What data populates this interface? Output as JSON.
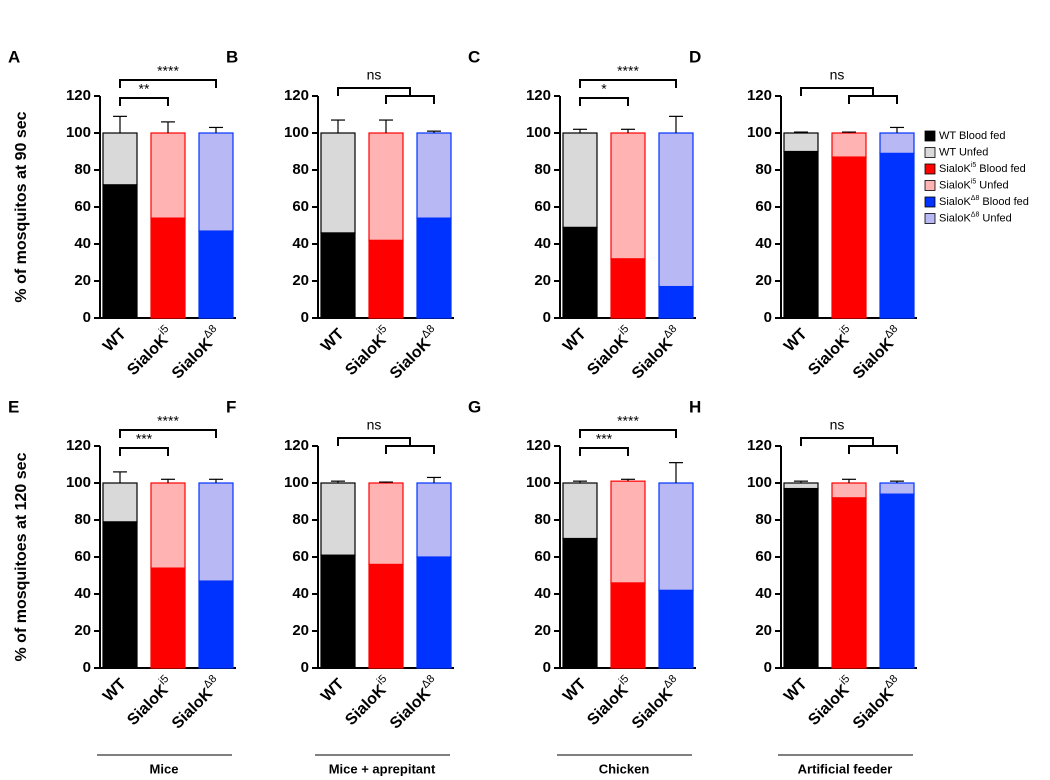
{
  "chart_data": [
    {
      "type": "bar",
      "label": "A",
      "ylabel": "% of mosquitos at 90 sec",
      "categories": [
        "WT",
        "SialoK",
        "SialoK"
      ],
      "category_sup": [
        null,
        "i5",
        "Δ8"
      ],
      "series": [
        {
          "colors": [
            "#000000",
            "#ff0000",
            "#0033ff"
          ],
          "values": [
            72,
            54,
            47
          ],
          "errors": [
            10,
            6,
            4
          ]
        },
        {
          "colors": [
            "#d9d9d9",
            "#ffb3b3",
            "#b8b8f5"
          ],
          "values": [
            28,
            46,
            53
          ],
          "errors": [
            9,
            6,
            3
          ]
        }
      ],
      "ylim": [
        0,
        120
      ],
      "yticks": [
        0,
        20,
        40,
        60,
        80,
        100,
        120
      ],
      "brackets": [
        {
          "kind": "wt-i5",
          "label": "**"
        },
        {
          "kind": "wt-d8",
          "label": "****"
        }
      ]
    },
    {
      "type": "bar",
      "label": "B",
      "categories": [
        "WT",
        "SialoK",
        "SialoK"
      ],
      "category_sup": [
        null,
        "i5",
        "Δ8"
      ],
      "series": [
        {
          "colors": [
            "#000000",
            "#ff0000",
            "#0033ff"
          ],
          "values": [
            46,
            42,
            54
          ],
          "errors": [
            8,
            8,
            1
          ]
        },
        {
          "colors": [
            "#d9d9d9",
            "#ffb3b3",
            "#b8b8f5"
          ],
          "values": [
            54,
            58,
            46
          ],
          "errors": [
            7,
            7,
            1
          ]
        }
      ],
      "ylim": [
        0,
        120
      ],
      "yticks": [
        0,
        20,
        40,
        60,
        80,
        100,
        120
      ],
      "brackets": [
        {
          "kind": "wt-group",
          "label": "ns"
        }
      ]
    },
    {
      "type": "bar",
      "label": "C",
      "categories": [
        "WT",
        "SialoK",
        "SialoK"
      ],
      "category_sup": [
        null,
        "i5",
        "Δ8"
      ],
      "series": [
        {
          "colors": [
            "#000000",
            "#ff0000",
            "#0033ff"
          ],
          "values": [
            49,
            32,
            17
          ],
          "errors": [
            2,
            2,
            10
          ]
        },
        {
          "colors": [
            "#d9d9d9",
            "#ffb3b3",
            "#b8b8f5"
          ],
          "values": [
            51,
            68,
            83
          ],
          "errors": [
            2,
            2,
            9
          ]
        }
      ],
      "ylim": [
        0,
        120
      ],
      "yticks": [
        0,
        20,
        40,
        60,
        80,
        100,
        120
      ],
      "brackets": [
        {
          "kind": "wt-i5",
          "label": "*"
        },
        {
          "kind": "wt-d8",
          "label": "****"
        }
      ]
    },
    {
      "type": "bar",
      "label": "D",
      "categories": [
        "WT",
        "SialoK",
        "SialoK"
      ],
      "category_sup": [
        null,
        "i5",
        "Δ8"
      ],
      "series": [
        {
          "colors": [
            "#000000",
            "#ff0000",
            "#0033ff"
          ],
          "values": [
            90,
            87,
            89
          ],
          "errors": [
            1,
            1,
            3
          ]
        },
        {
          "colors": [
            "#d9d9d9",
            "#ffb3b3",
            "#b8b8f5"
          ],
          "values": [
            10,
            13,
            11
          ],
          "errors": [
            0.5,
            0.5,
            3
          ]
        }
      ],
      "ylim": [
        0,
        120
      ],
      "yticks": [
        0,
        20,
        40,
        60,
        80,
        100,
        120
      ],
      "brackets": [
        {
          "kind": "wt-group",
          "label": "ns"
        }
      ],
      "legend": [
        {
          "name": "WT Blood fed",
          "color": "#000000"
        },
        {
          "name": "WT Unfed",
          "color": "#d9d9d9"
        },
        {
          "name": "SialoK",
          "sup": "i5",
          "suffix": " Blood fed",
          "color": "#ff0000"
        },
        {
          "name": "SialoK",
          "sup": "i5",
          "suffix": " Unfed",
          "color": "#ffb3b3"
        },
        {
          "name": "SialoK",
          "sup": "Δ8",
          "suffix": " Blood fed",
          "color": "#0033ff"
        },
        {
          "name": "SialoK",
          "sup": "Δ8",
          "suffix": " Unfed",
          "color": "#b8b8f5"
        }
      ]
    },
    {
      "type": "bar",
      "label": "E",
      "ylabel": "% of mosquitoes at 120 sec",
      "group_label": "Mice",
      "categories": [
        "WT",
        "SialoK",
        "SialoK"
      ],
      "category_sup": [
        null,
        "i5",
        "Δ8"
      ],
      "series": [
        {
          "colors": [
            "#000000",
            "#ff0000",
            "#0033ff"
          ],
          "values": [
            79,
            54,
            47
          ],
          "errors": [
            6,
            2,
            2
          ]
        },
        {
          "colors": [
            "#d9d9d9",
            "#ffb3b3",
            "#b8b8f5"
          ],
          "values": [
            21,
            46,
            53
          ],
          "errors": [
            6,
            2,
            2
          ]
        }
      ],
      "ylim": [
        0,
        120
      ],
      "yticks": [
        0,
        20,
        40,
        60,
        80,
        100,
        120
      ],
      "brackets": [
        {
          "kind": "wt-i5",
          "label": "***"
        },
        {
          "kind": "wt-d8",
          "label": "****"
        }
      ]
    },
    {
      "type": "bar",
      "label": "F",
      "group_label": "Mice + aprepitant",
      "categories": [
        "WT",
        "SialoK",
        "SialoK"
      ],
      "category_sup": [
        null,
        "i5",
        "Δ8"
      ],
      "series": [
        {
          "colors": [
            "#000000",
            "#ff0000",
            "#0033ff"
          ],
          "values": [
            61,
            56,
            60
          ],
          "errors": [
            1,
            1,
            4
          ]
        },
        {
          "colors": [
            "#d9d9d9",
            "#ffb3b3",
            "#b8b8f5"
          ],
          "values": [
            39,
            44,
            40
          ],
          "errors": [
            1,
            0.5,
            3
          ]
        }
      ],
      "ylim": [
        0,
        120
      ],
      "yticks": [
        0,
        20,
        40,
        60,
        80,
        100,
        120
      ],
      "brackets": [
        {
          "kind": "wt-group",
          "label": "ns"
        }
      ]
    },
    {
      "type": "bar",
      "label": "G",
      "group_label": "Chicken",
      "categories": [
        "WT",
        "SialoK",
        "SialoK"
      ],
      "category_sup": [
        null,
        "i5",
        "Δ8"
      ],
      "series": [
        {
          "colors": [
            "#000000",
            "#ff0000",
            "#0033ff"
          ],
          "values": [
            70,
            46,
            42
          ],
          "errors": [
            1,
            3,
            12
          ]
        },
        {
          "colors": [
            "#d9d9d9",
            "#ffb3b3",
            "#b8b8f5"
          ],
          "values": [
            30,
            55,
            58
          ],
          "errors": [
            1,
            1,
            11
          ]
        }
      ],
      "ylim": [
        0,
        120
      ],
      "yticks": [
        0,
        20,
        40,
        60,
        80,
        100,
        120
      ],
      "brackets": [
        {
          "kind": "wt-i5",
          "label": "***"
        },
        {
          "kind": "wt-d8",
          "label": "****"
        }
      ]
    },
    {
      "type": "bar",
      "label": "H",
      "group_label": "Artificial feeder",
      "categories": [
        "WT",
        "SialoK",
        "SialoK"
      ],
      "category_sup": [
        null,
        "i5",
        "Δ8"
      ],
      "series": [
        {
          "colors": [
            "#000000",
            "#ff0000",
            "#0033ff"
          ],
          "values": [
            97,
            92,
            94
          ],
          "errors": [
            2,
            2,
            1
          ]
        },
        {
          "colors": [
            "#d9d9d9",
            "#ffb3b3",
            "#b8b8f5"
          ],
          "values": [
            3,
            8,
            6
          ],
          "errors": [
            1,
            2,
            1
          ]
        }
      ],
      "ylim": [
        0,
        120
      ],
      "yticks": [
        0,
        20,
        40,
        60,
        80,
        100,
        120
      ],
      "brackets": [
        {
          "kind": "wt-group",
          "label": "ns"
        }
      ]
    }
  ]
}
